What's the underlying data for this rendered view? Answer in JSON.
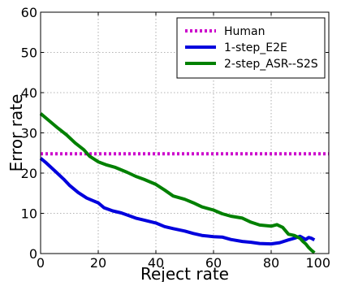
{
  "chart_data": {
    "type": "line",
    "title": "",
    "xlabel": "Reject rate",
    "ylabel": "Error rate",
    "xlim": [
      0,
      100
    ],
    "ylim": [
      0,
      60
    ],
    "xticks": [
      0,
      20,
      40,
      60,
      80,
      100
    ],
    "yticks": [
      0,
      10,
      20,
      30,
      40,
      50,
      60
    ],
    "grid": true,
    "legend_position": "top-right",
    "series": [
      {
        "name": "Human",
        "color": "#cc00cc",
        "style": "dotted",
        "x": [
          0,
          100
        ],
        "y": [
          24.8,
          24.8
        ]
      },
      {
        "name": "1-step_E2E",
        "color": "#0000dd",
        "style": "solid",
        "x": [
          0,
          2,
          5,
          8,
          10,
          13,
          16,
          18,
          20,
          22,
          25,
          28,
          30,
          33,
          36,
          40,
          43,
          46,
          50,
          53,
          56,
          60,
          63,
          66,
          70,
          73,
          76,
          80,
          83,
          86,
          88,
          90,
          92,
          93,
          94,
          95
        ],
        "y": [
          23.7,
          22.5,
          20.5,
          18.5,
          17,
          15.2,
          13.8,
          13.2,
          12.6,
          11.4,
          10.6,
          10.1,
          9.6,
          8.8,
          8.3,
          7.6,
          6.7,
          6.2,
          5.6,
          5.0,
          4.5,
          4.2,
          4.1,
          3.5,
          3.0,
          2.8,
          2.5,
          2.4,
          2.7,
          3.4,
          3.8,
          4.3,
          3.5,
          4.0,
          3.8,
          3.4
        ]
      },
      {
        "name": "2-step_ASR--S2S",
        "color": "#008000",
        "style": "solid",
        "x": [
          0,
          3,
          6,
          9,
          12,
          15,
          17,
          20,
          23,
          26,
          30,
          33,
          36,
          40,
          43,
          46,
          50,
          53,
          56,
          60,
          63,
          66,
          70,
          73,
          76,
          80,
          82,
          84,
          86,
          88,
          90,
          91,
          92,
          93,
          94,
          95
        ],
        "y": [
          34.8,
          33,
          31.2,
          29.5,
          27.5,
          25.8,
          24.2,
          22.8,
          22,
          21.4,
          20.2,
          19.2,
          18.4,
          17.2,
          15.8,
          14.3,
          13.5,
          12.6,
          11.6,
          10.8,
          9.9,
          9.3,
          8.8,
          7.8,
          7.1,
          6.8,
          7.2,
          6.5,
          4.8,
          4.5,
          3.8,
          3.0,
          2.4,
          1.5,
          0.8,
          0.2
        ]
      }
    ]
  }
}
